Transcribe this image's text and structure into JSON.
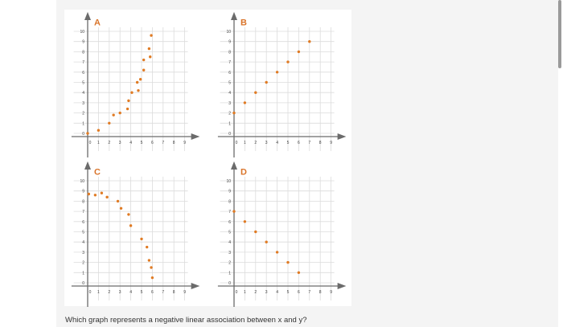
{
  "question": "Which graph represents a negative linear association between x and y?",
  "colors": {
    "point": "#e07b24",
    "label": "#d9742a",
    "axis": "#6b6b6b",
    "grid": "#dcdcdc",
    "panel": "#ffffff",
    "background": "#f4f4f4"
  },
  "chart_data": [
    {
      "type": "scatter",
      "title": "A",
      "xlabel": "",
      "ylabel": "",
      "xlim": [
        0,
        9
      ],
      "ylim": [
        0,
        10
      ],
      "x_ticks": [
        "0",
        "1",
        "2",
        "3",
        "4",
        "5",
        "6",
        "7",
        "8",
        "9"
      ],
      "y_ticks": [
        "0",
        "1",
        "2",
        "3",
        "4",
        "5",
        "6",
        "7",
        "8",
        "9",
        "10"
      ],
      "grid": true,
      "points": [
        [
          0,
          0
        ],
        [
          1,
          0.3
        ],
        [
          2,
          1
        ],
        [
          2.4,
          1.8
        ],
        [
          3,
          2
        ],
        [
          3.7,
          2.4
        ],
        [
          3.8,
          3.2
        ],
        [
          4.1,
          4
        ],
        [
          4.6,
          5
        ],
        [
          4.7,
          4.2
        ],
        [
          4.9,
          5.3
        ],
        [
          5.2,
          6.2
        ],
        [
          5.2,
          7.2
        ],
        [
          5.7,
          8.3
        ],
        [
          5.8,
          7.5
        ],
        [
          5.9,
          9.6
        ]
      ]
    },
    {
      "type": "scatter",
      "title": "B",
      "xlabel": "",
      "ylabel": "",
      "xlim": [
        0,
        9
      ],
      "ylim": [
        0,
        10
      ],
      "x_ticks": [
        "0",
        "1",
        "2",
        "3",
        "4",
        "5",
        "6",
        "7",
        "8",
        "9"
      ],
      "y_ticks": [
        "0",
        "1",
        "2",
        "3",
        "4",
        "5",
        "6",
        "7",
        "8",
        "9",
        "10"
      ],
      "grid": true,
      "points": [
        [
          0,
          2
        ],
        [
          1,
          3
        ],
        [
          2,
          4
        ],
        [
          3,
          5
        ],
        [
          4,
          6
        ],
        [
          5,
          7
        ],
        [
          6,
          8
        ],
        [
          7,
          9
        ]
      ]
    },
    {
      "type": "scatter",
      "title": "C",
      "xlabel": "",
      "ylabel": "",
      "xlim": [
        0,
        9
      ],
      "ylim": [
        0,
        10
      ],
      "x_ticks": [
        "0",
        "1",
        "2",
        "3",
        "4",
        "5",
        "6",
        "7",
        "8",
        "9"
      ],
      "y_ticks": [
        "0",
        "1",
        "2",
        "3",
        "4",
        "5",
        "6",
        "7",
        "8",
        "9",
        "10"
      ],
      "grid": true,
      "points": [
        [
          0.1,
          8.7
        ],
        [
          0.7,
          8.6
        ],
        [
          1.3,
          8.8
        ],
        [
          1.8,
          8.4
        ],
        [
          2.8,
          8
        ],
        [
          3.1,
          7.3
        ],
        [
          3.8,
          6.7
        ],
        [
          4,
          5.6
        ],
        [
          5,
          4.3
        ],
        [
          5.5,
          3.5
        ],
        [
          5.7,
          2.2
        ],
        [
          5.9,
          1.5
        ],
        [
          6,
          0.5
        ]
      ]
    },
    {
      "type": "scatter",
      "title": "D",
      "xlabel": "",
      "ylabel": "",
      "xlim": [
        0,
        9
      ],
      "ylim": [
        0,
        10
      ],
      "x_ticks": [
        "0",
        "1",
        "2",
        "3",
        "4",
        "5",
        "6",
        "7",
        "8",
        "9"
      ],
      "y_ticks": [
        "0",
        "1",
        "2",
        "3",
        "4",
        "5",
        "6",
        "7",
        "8",
        "9",
        "10"
      ],
      "grid": true,
      "points": [
        [
          0,
          7
        ],
        [
          1,
          6
        ],
        [
          2,
          5
        ],
        [
          3,
          4
        ],
        [
          4,
          3
        ],
        [
          5,
          2
        ],
        [
          6,
          1
        ]
      ]
    }
  ]
}
